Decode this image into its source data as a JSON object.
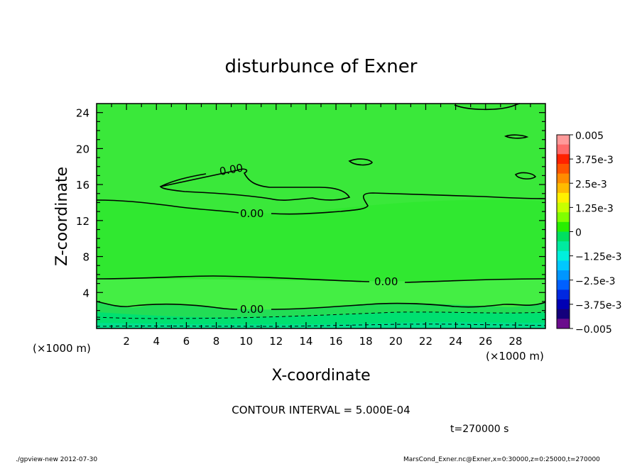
{
  "chart_data": {
    "type": "heatmap",
    "title": "disturbunce of Exner",
    "xlabel": "X-coordinate",
    "ylabel": "Z-coordinate",
    "x_unit": "(×1000 m)",
    "xlim": [
      0,
      30
    ],
    "ylim": [
      0,
      25
    ],
    "x_ticks": [
      "2",
      "4",
      "6",
      "8",
      "10",
      "12",
      "14",
      "16",
      "18",
      "20",
      "22",
      "24",
      "26",
      "28"
    ],
    "y_ticks": [
      "4",
      "8",
      "12",
      "16",
      "20",
      "24"
    ],
    "colorbar": {
      "labels": [
        "0.005",
        "3.75e-3",
        "2.5e-3",
        "1.25e-3",
        "0",
        "−1.25e-3",
        "−2.5e-3",
        "−3.75e-3",
        "−0.005"
      ],
      "colors": [
        "#ff9a9a",
        "#ff6a6a",
        "#ff2200",
        "#ff5500",
        "#ff8c00",
        "#ffbb00",
        "#fff000",
        "#c8ff00",
        "#80ff00",
        "#28ee00",
        "#00e060",
        "#00eaa0",
        "#00f0dc",
        "#00c8ff",
        "#0096ff",
        "#0060ff",
        "#0028e0",
        "#0000b4",
        "#14007c",
        "#6a0c8c"
      ]
    },
    "contour_labels": [
      "0.00",
      "0.00",
      "0.00",
      "0.00"
    ],
    "contour_interval": "CONTOUR INTERVAL = 5.000E-04",
    "time": "t=270000 s"
  },
  "footer": {
    "left": "./gpview-new 2012-07-30",
    "right": "MarsCond_Exner.nc@Exner,x=0:30000,z=0:25000,t=270000"
  },
  "colors": {
    "field": "#30e830",
    "field_light": "#44ee44",
    "near_zero_negative": "#00e070"
  }
}
